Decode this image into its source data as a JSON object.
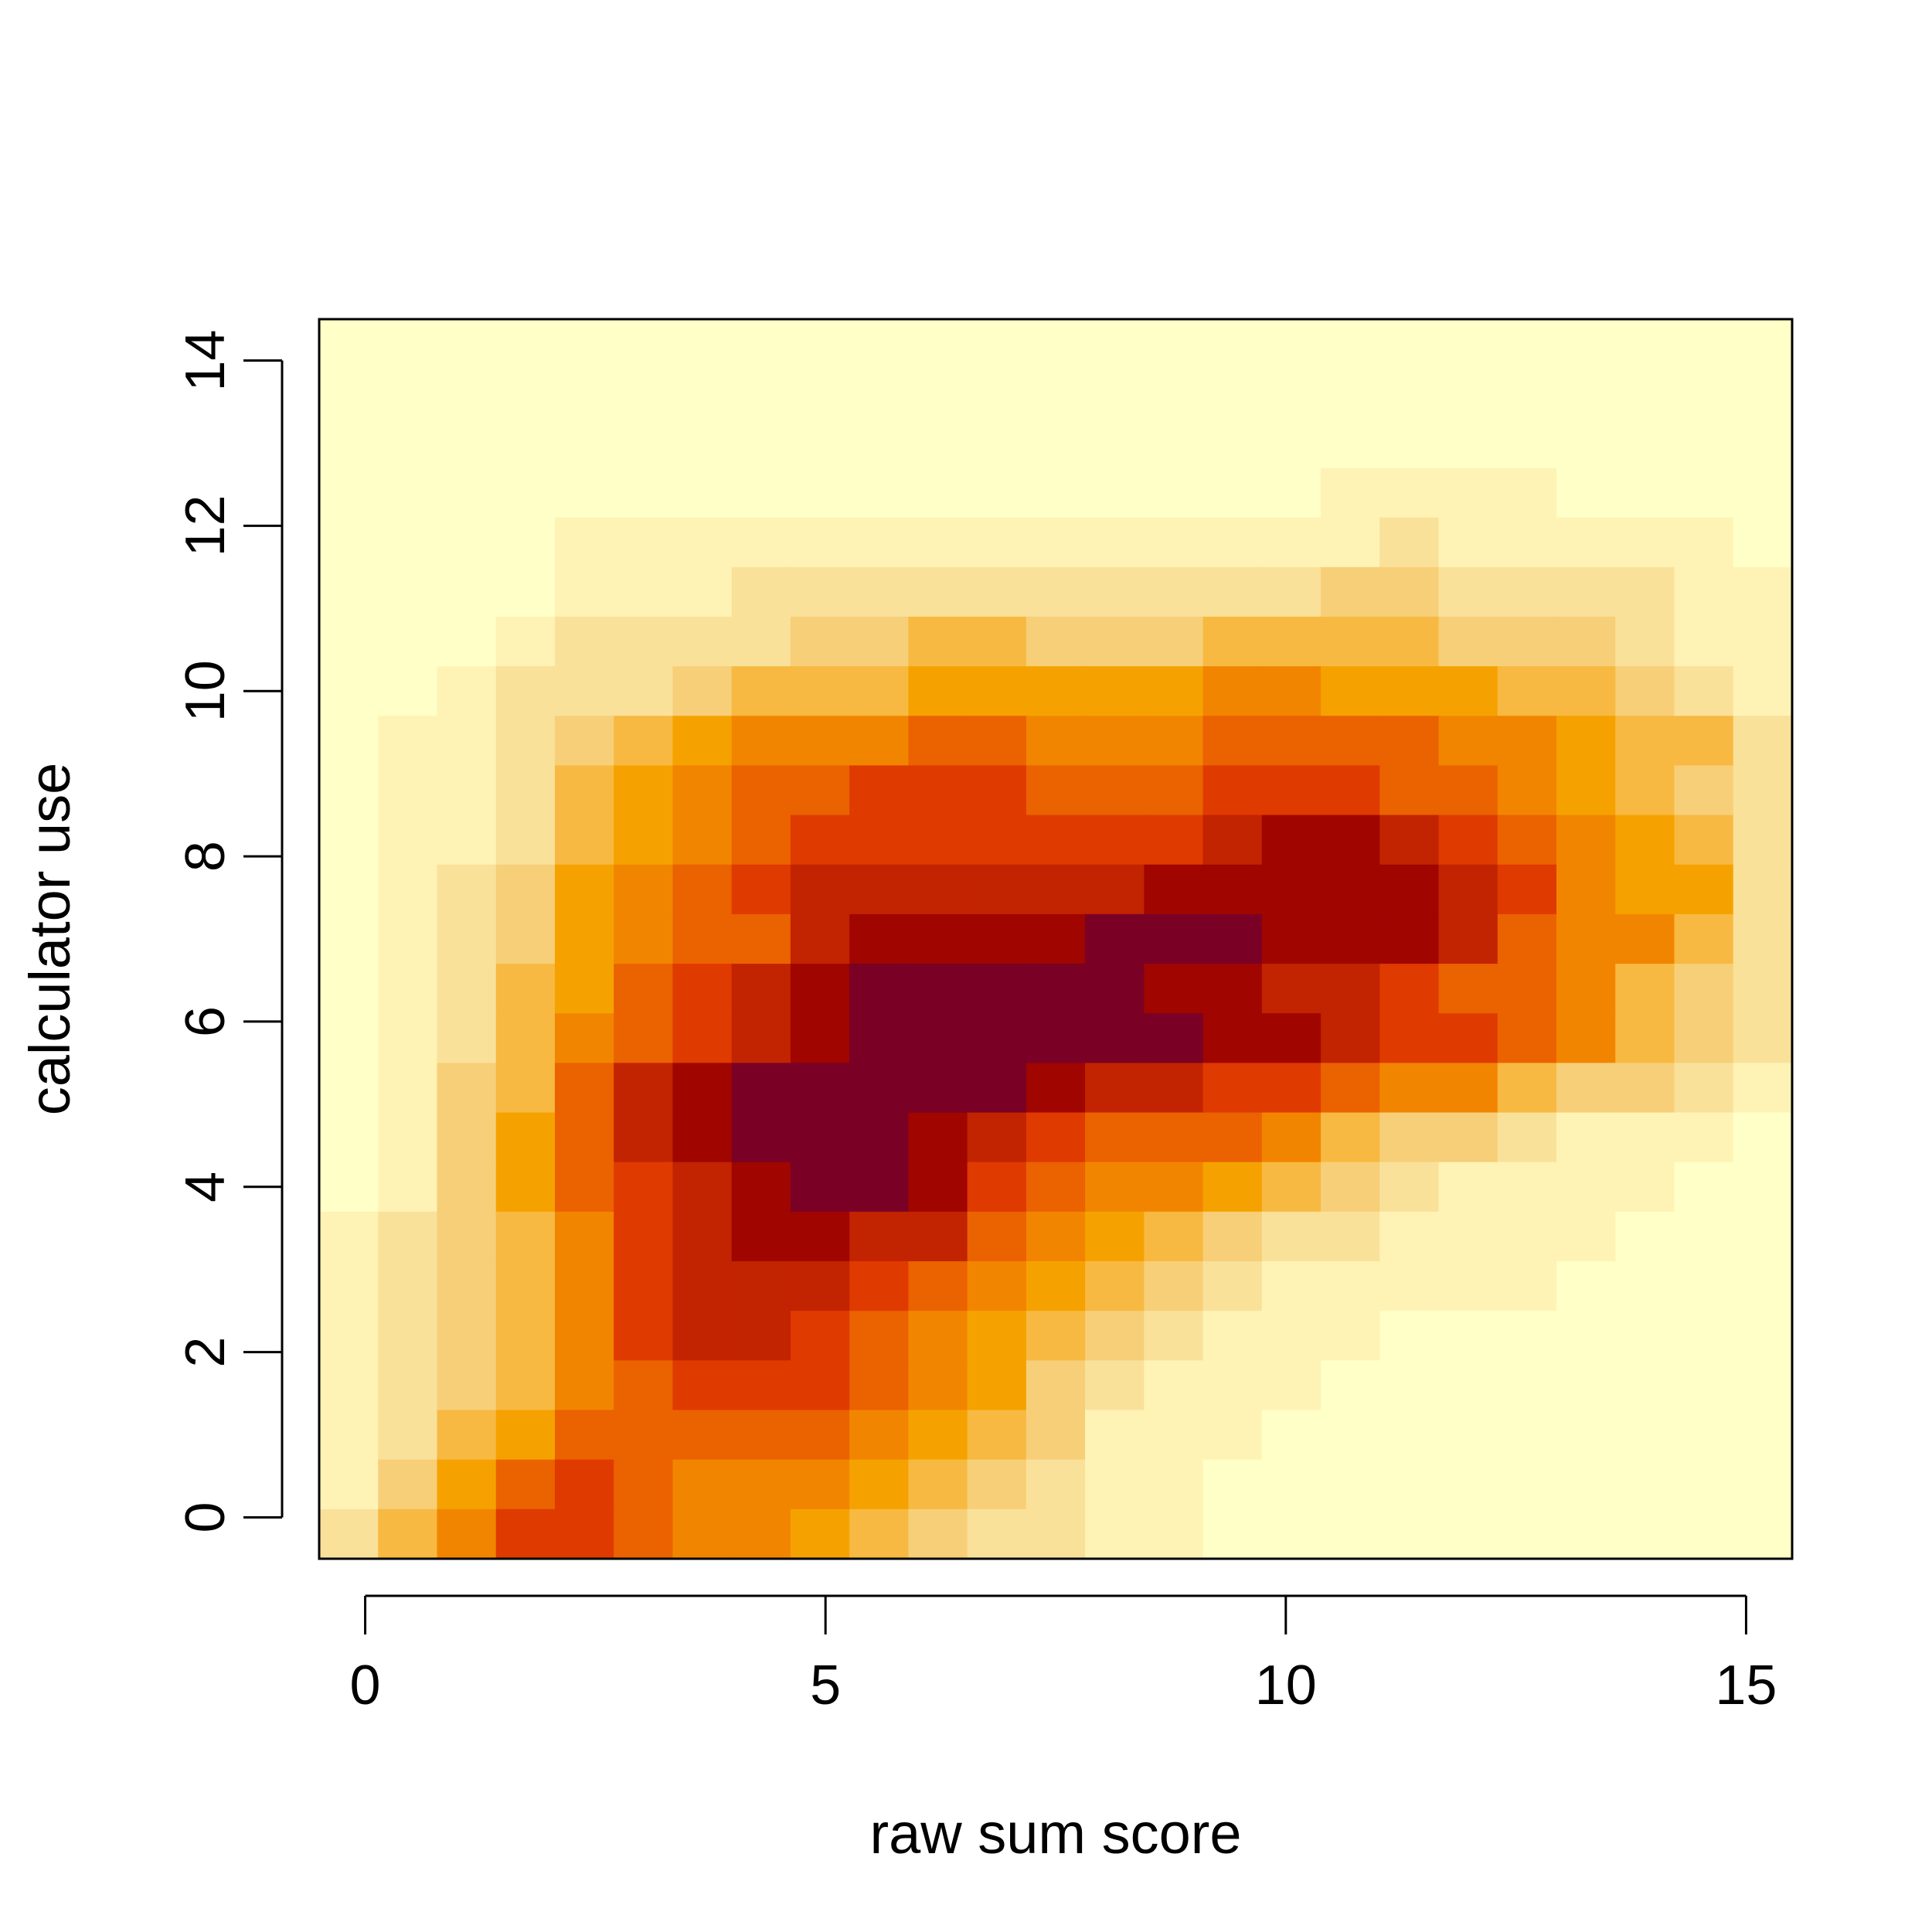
{
  "chart_data": {
    "type": "heatmap",
    "title": "",
    "xlabel": "raw sum score",
    "ylabel": "calculator use",
    "xlim": [
      -0.5,
      15.5
    ],
    "ylim": [
      -0.5,
      14.5
    ],
    "x_ticks": [
      "0",
      "5",
      "10",
      "15"
    ],
    "y_ticks": [
      "0",
      "2",
      "4",
      "6",
      "8",
      "10",
      "12",
      "14"
    ],
    "grid": false,
    "legend": "none",
    "x_bins": 25,
    "y_bins": 25,
    "palette": [
      "#FFFFC8",
      "#FEF3B5",
      "#FAE19A",
      "#F7CF79",
      "#F7B941",
      "#F5A200",
      "#F28500",
      "#EB6200",
      "#DF3A00",
      "#C22300",
      "#A00500",
      "#7A0025"
    ],
    "levels": [
      [
        0,
        0,
        0,
        0,
        0,
        0,
        0,
        0,
        0,
        0,
        0,
        0,
        0,
        0,
        0,
        0,
        0,
        0,
        0,
        0,
        0,
        0,
        0,
        0,
        0
      ],
      [
        0,
        0,
        0,
        0,
        0,
        0,
        0,
        0,
        0,
        0,
        0,
        0,
        0,
        0,
        0,
        0,
        0,
        0,
        0,
        0,
        0,
        0,
        0,
        0,
        0
      ],
      [
        0,
        0,
        0,
        0,
        0,
        0,
        0,
        0,
        0,
        0,
        0,
        0,
        0,
        0,
        0,
        0,
        0,
        0,
        0,
        0,
        0,
        0,
        0,
        0,
        0
      ],
      [
        0,
        0,
        0,
        0,
        0,
        0,
        0,
        0,
        0,
        0,
        0,
        0,
        0,
        0,
        0,
        0,
        0,
        1,
        1,
        1,
        1,
        0,
        0,
        0,
        0
      ],
      [
        0,
        0,
        0,
        0,
        1,
        1,
        1,
        1,
        1,
        1,
        1,
        1,
        1,
        1,
        1,
        1,
        1,
        1,
        2,
        1,
        1,
        1,
        1,
        1,
        0
      ],
      [
        0,
        0,
        0,
        0,
        1,
        1,
        1,
        2,
        2,
        2,
        2,
        2,
        2,
        2,
        2,
        2,
        2,
        3,
        3,
        2,
        2,
        2,
        2,
        1,
        1
      ],
      [
        0,
        0,
        0,
        1,
        2,
        2,
        2,
        2,
        3,
        3,
        4,
        4,
        3,
        3,
        3,
        4,
        4,
        4,
        4,
        3,
        3,
        3,
        2,
        1,
        1
      ],
      [
        0,
        0,
        1,
        2,
        2,
        2,
        3,
        4,
        4,
        4,
        5,
        5,
        5,
        5,
        5,
        6,
        6,
        5,
        5,
        5,
        4,
        4,
        3,
        2,
        1
      ],
      [
        0,
        1,
        1,
        2,
        3,
        4,
        5,
        6,
        6,
        6,
        7,
        7,
        6,
        6,
        6,
        7,
        7,
        7,
        7,
        6,
        6,
        5,
        4,
        4,
        2
      ],
      [
        0,
        1,
        1,
        2,
        4,
        5,
        6,
        7,
        7,
        8,
        8,
        8,
        7,
        7,
        7,
        8,
        8,
        8,
        7,
        7,
        6,
        5,
        4,
        3,
        2
      ],
      [
        0,
        1,
        1,
        2,
        4,
        5,
        6,
        7,
        8,
        8,
        8,
        8,
        8,
        8,
        8,
        9,
        10,
        10,
        9,
        8,
        7,
        6,
        5,
        4,
        2
      ],
      [
        0,
        1,
        2,
        3,
        5,
        6,
        7,
        8,
        9,
        9,
        9,
        9,
        9,
        9,
        10,
        10,
        10,
        10,
        10,
        9,
        8,
        6,
        5,
        5,
        2
      ],
      [
        0,
        1,
        2,
        3,
        5,
        6,
        7,
        7,
        9,
        10,
        10,
        10,
        10,
        11,
        11,
        11,
        10,
        10,
        10,
        9,
        7,
        6,
        6,
        4,
        2
      ],
      [
        0,
        1,
        2,
        4,
        5,
        7,
        8,
        9,
        10,
        11,
        11,
        11,
        11,
        11,
        10,
        10,
        9,
        9,
        8,
        7,
        7,
        6,
        4,
        3,
        2
      ],
      [
        0,
        1,
        2,
        4,
        6,
        7,
        8,
        9,
        10,
        11,
        11,
        11,
        11,
        11,
        11,
        10,
        10,
        9,
        8,
        8,
        7,
        6,
        4,
        3,
        2
      ],
      [
        0,
        1,
        3,
        4,
        7,
        9,
        10,
        11,
        11,
        11,
        11,
        11,
        10,
        9,
        9,
        8,
        8,
        7,
        6,
        6,
        4,
        3,
        3,
        2,
        1
      ],
      [
        0,
        1,
        3,
        5,
        7,
        9,
        10,
        11,
        11,
        11,
        10,
        9,
        8,
        7,
        7,
        7,
        6,
        4,
        3,
        3,
        2,
        1,
        1,
        1,
        0
      ],
      [
        0,
        1,
        3,
        5,
        7,
        8,
        9,
        10,
        11,
        11,
        10,
        8,
        7,
        6,
        6,
        5,
        4,
        3,
        2,
        1,
        1,
        1,
        1,
        0,
        0
      ],
      [
        1,
        2,
        3,
        4,
        6,
        8,
        9,
        10,
        10,
        9,
        9,
        7,
        6,
        5,
        4,
        3,
        2,
        2,
        1,
        1,
        1,
        1,
        0,
        0,
        0
      ],
      [
        1,
        2,
        3,
        4,
        6,
        8,
        9,
        9,
        9,
        8,
        7,
        6,
        5,
        4,
        3,
        2,
        1,
        1,
        1,
        1,
        1,
        0,
        0,
        0,
        0
      ],
      [
        1,
        2,
        3,
        4,
        6,
        8,
        9,
        9,
        8,
        7,
        6,
        5,
        4,
        3,
        2,
        1,
        1,
        1,
        0,
        0,
        0,
        0,
        0,
        0,
        0
      ],
      [
        1,
        2,
        3,
        4,
        6,
        7,
        8,
        8,
        8,
        7,
        6,
        5,
        3,
        2,
        1,
        1,
        1,
        0,
        0,
        0,
        0,
        0,
        0,
        0,
        0
      ],
      [
        1,
        2,
        4,
        5,
        7,
        7,
        7,
        7,
        7,
        6,
        5,
        4,
        3,
        1,
        1,
        1,
        0,
        0,
        0,
        0,
        0,
        0,
        0,
        0,
        0
      ],
      [
        1,
        3,
        5,
        7,
        8,
        7,
        6,
        6,
        6,
        5,
        4,
        3,
        2,
        1,
        1,
        0,
        0,
        0,
        0,
        0,
        0,
        0,
        0,
        0,
        0
      ],
      [
        2,
        4,
        6,
        8,
        8,
        7,
        6,
        6,
        5,
        4,
        3,
        2,
        2,
        1,
        1,
        0,
        0,
        0,
        0,
        0,
        0,
        0,
        0,
        0,
        0
      ]
    ]
  }
}
